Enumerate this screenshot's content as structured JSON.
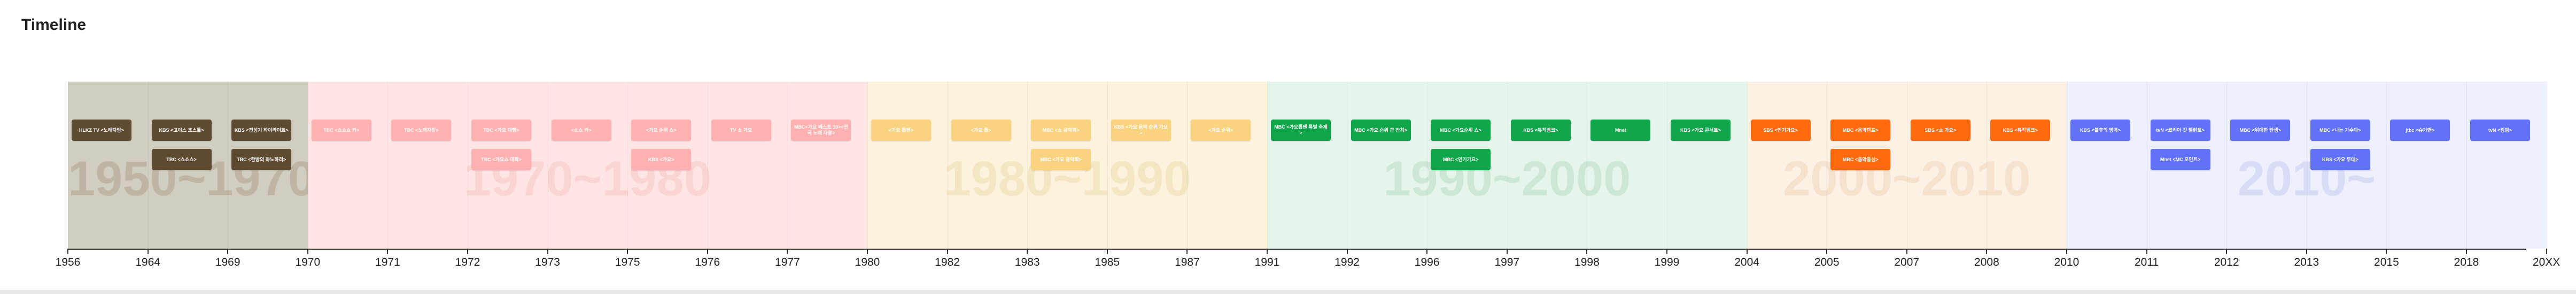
{
  "page": {
    "title": "Timeline"
  },
  "eras": [
    {
      "label": "1950~1970",
      "bg": "#d2cdc1",
      "chip": "#5e4b32",
      "label_color": "rgba(140,120,95,0.28)"
    },
    {
      "label": "1970~1980",
      "bg": "#ffe5e4",
      "chip": "#ffb1b1",
      "label_color": "rgba(230,150,150,0.22)"
    },
    {
      "label": "1980~1990",
      "bg": "#fdf2dc",
      "chip": "#f9d37f",
      "label_color": "rgba(220,190,120,0.25)"
    },
    {
      "label": "1990~2000",
      "bg": "#e6f5ea",
      "chip": "#0fa54b",
      "label_color": "rgba(120,180,140,0.22)"
    },
    {
      "label": "2000~2010",
      "bg": "#fdf1e5",
      "chip": "#ff6a0f",
      "label_color": "rgba(220,170,120,0.22)"
    },
    {
      "label": "2010~",
      "bg": "#edf0fd",
      "chip": "#6272f6",
      "label_color": "rgba(140,150,220,0.22)"
    }
  ],
  "years": [
    "1956",
    "1964",
    "1969",
    "1970",
    "1971",
    "1972",
    "1973",
    "1975",
    "1976",
    "1977",
    "1980",
    "1982",
    "1983",
    "1985",
    "1987",
    "1991",
    "1992",
    "1996",
    "1997",
    "1998",
    "1999",
    "2004",
    "2005",
    "2007",
    "2008",
    "2010",
    "2011",
    "2012",
    "2013",
    "2015",
    "2018",
    "20XX"
  ],
  "events": [
    {
      "era": 0,
      "col": 0,
      "row": 0,
      "text": "HLKZ TV <노래자랑>"
    },
    {
      "era": 0,
      "col": 1,
      "row": 0,
      "text": "KBS <고이스 조스틀>"
    },
    {
      "era": 0,
      "col": 1,
      "row": 1,
      "text": "TBC <쇼쇼쇼>"
    },
    {
      "era": 0,
      "col": 2,
      "row": 0,
      "text": "KBS <전성기 하이라이트>"
    },
    {
      "era": 0,
      "col": 2,
      "row": 1,
      "text": "TBC <한방의 하노하리>"
    },
    {
      "era": 1,
      "col": 3,
      "row": 0,
      "text": "TBC <쇼쇼쇼 카>"
    },
    {
      "era": 1,
      "col": 4,
      "row": 0,
      "text": "TBC <노래자랑>"
    },
    {
      "era": 1,
      "col": 5,
      "row": 0,
      "text": "TBC <가요 대행>"
    },
    {
      "era": 1,
      "col": 5,
      "row": 1,
      "text": "TBC <가요쇼 대회>"
    },
    {
      "era": 1,
      "col": 6,
      "row": 0,
      "text": "<쇼쇼 카>"
    },
    {
      "era": 1,
      "col": 7,
      "row": 0,
      "text": "<가요 순위 쇼>"
    },
    {
      "era": 1,
      "col": 7,
      "row": 1,
      "text": "KBS <가요>"
    },
    {
      "era": 1,
      "col": 8,
      "row": 0,
      "text": "TV 쇼 가요"
    },
    {
      "era": 1,
      "col": 9,
      "row": 0,
      "text": "MBC<가요 베스트 10><전국 노래 자랑>"
    },
    {
      "era": 2,
      "col": 10,
      "row": 0,
      "text": "<가요 톱텐>"
    },
    {
      "era": 2,
      "col": 11,
      "row": 0,
      "text": "<가요 톱>"
    },
    {
      "era": 2,
      "col": 12,
      "row": 0,
      "text": "MBC <쇼 음악회>"
    },
    {
      "era": 2,
      "col": 12,
      "row": 1,
      "text": "MBC <가요 음악회>"
    },
    {
      "era": 2,
      "col": 13,
      "row": 0,
      "text": "KBS <가요 음악 순위 가요>"
    },
    {
      "era": 2,
      "col": 14,
      "row": 0,
      "text": "<가요 순위>"
    },
    {
      "era": 3,
      "col": 15,
      "row": 0,
      "text": "MBC <가요톱텐 특별 축제>"
    },
    {
      "era": 3,
      "col": 16,
      "row": 0,
      "text": "MBC <가요 순위 큰 잔치>"
    },
    {
      "era": 3,
      "col": 17,
      "row": 0,
      "text": "MBC <가요순위 쇼>"
    },
    {
      "era": 3,
      "col": 17,
      "row": 1,
      "text": "MBC <인기가요>"
    },
    {
      "era": 3,
      "col": 18,
      "row": 0,
      "text": "KBS <뮤직뱅크>"
    },
    {
      "era": 3,
      "col": 19,
      "row": 0,
      "text": "Mnet"
    },
    {
      "era": 3,
      "col": 20,
      "row": 0,
      "text": "KBS <가요 콘서트>"
    },
    {
      "era": 4,
      "col": 21,
      "row": 0,
      "text": "SBS <인기가요>"
    },
    {
      "era": 4,
      "col": 22,
      "row": 0,
      "text": "MBC <음악캠프>"
    },
    {
      "era": 4,
      "col": 22,
      "row": 1,
      "text": "MBC <음악중심>"
    },
    {
      "era": 4,
      "col": 23,
      "row": 0,
      "text": "SBS <쇼 가요>"
    },
    {
      "era": 4,
      "col": 24,
      "row": 0,
      "text": "KBS <뮤직뱅크>"
    },
    {
      "era": 5,
      "col": 25,
      "row": 0,
      "text": "KBS <불후의 명곡>"
    },
    {
      "era": 5,
      "col": 26,
      "row": 0,
      "text": "tvN <코리아 갓 탤런트>"
    },
    {
      "era": 5,
      "col": 26,
      "row": 1,
      "text": "Mnet <MC 포인트>"
    },
    {
      "era": 5,
      "col": 27,
      "row": 0,
      "text": "MBC <위대한 탄생>"
    },
    {
      "era": 5,
      "col": 28,
      "row": 0,
      "text": "MBC <나는 가수다>"
    },
    {
      "era": 5,
      "col": 28,
      "row": 1,
      "text": "KBS <가요 무대>"
    },
    {
      "era": 5,
      "col": 29,
      "row": 0,
      "text": "jtbc <슈가맨>"
    },
    {
      "era": 5,
      "col": 30,
      "row": 0,
      "text": "tvN <킹덤>"
    }
  ]
}
